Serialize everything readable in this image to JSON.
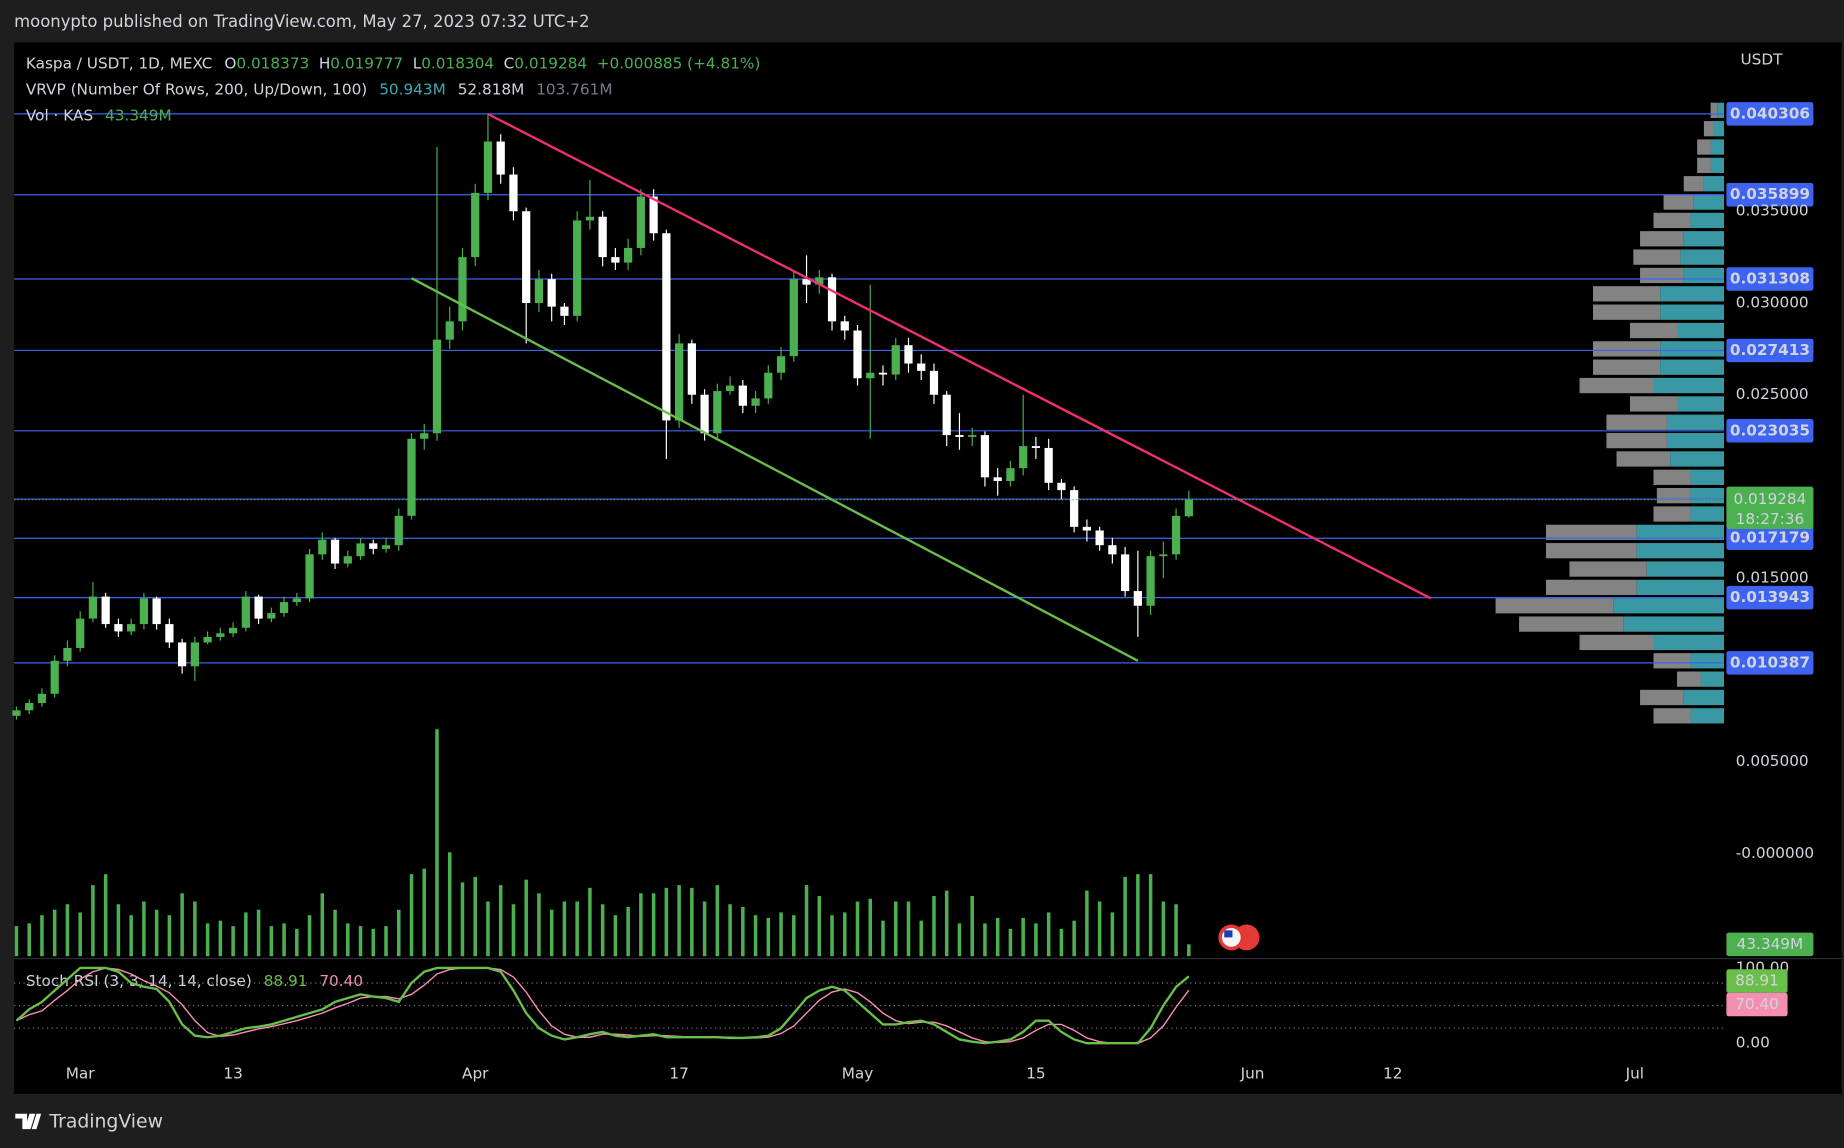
{
  "chart_data": {
    "type": "candlestick",
    "header": "moonypto published on TradingView.com, May 27, 2023 07:32 UTC+2",
    "symbol": "Kaspa / USDT, 1D, MEXC",
    "ohlc_keys": [
      "O",
      "H",
      "L",
      "C"
    ],
    "change_label": "+0.000885 (+4.81%)",
    "vrvp_title": "VRVP (Number Of Rows, 200, Up/Down, 100)",
    "vrvp_values": [
      "50.943M",
      "52.818M",
      "103.761M"
    ],
    "vol_title": "Vol · KAS",
    "currency": "USDT",
    "countdown": "18:27:36",
    "footer": "TradingView",
    "up_color": "#4caf50",
    "down_color": "#ffffff",
    "x": [
      "2023-02-24",
      "2023-02-25",
      "2023-02-26",
      "2023-02-27",
      "2023-02-28",
      "2023-03-01",
      "2023-03-02",
      "2023-03-03",
      "2023-03-04",
      "2023-03-05",
      "2023-03-06",
      "2023-03-07",
      "2023-03-08",
      "2023-03-09",
      "2023-03-10",
      "2023-03-11",
      "2023-03-12",
      "2023-03-13",
      "2023-03-14",
      "2023-03-15",
      "2023-03-16",
      "2023-03-17",
      "2023-03-18",
      "2023-03-19",
      "2023-03-20",
      "2023-03-21",
      "2023-03-22",
      "2023-03-23",
      "2023-03-24",
      "2023-03-25",
      "2023-03-26",
      "2023-03-27",
      "2023-03-28",
      "2023-03-29",
      "2023-03-30",
      "2023-03-31",
      "2023-04-01",
      "2023-04-02",
      "2023-04-03",
      "2023-04-04",
      "2023-04-05",
      "2023-04-06",
      "2023-04-07",
      "2023-04-08",
      "2023-04-09",
      "2023-04-10",
      "2023-04-11",
      "2023-04-12",
      "2023-04-13",
      "2023-04-14",
      "2023-04-15",
      "2023-04-16",
      "2023-04-17",
      "2023-04-18",
      "2023-04-19",
      "2023-04-20",
      "2023-04-21",
      "2023-04-22",
      "2023-04-23",
      "2023-04-24",
      "2023-04-25",
      "2023-04-26",
      "2023-04-27",
      "2023-04-28",
      "2023-04-29",
      "2023-04-30",
      "2023-05-01",
      "2023-05-02",
      "2023-05-03",
      "2023-05-04",
      "2023-05-05",
      "2023-05-06",
      "2023-05-07",
      "2023-05-08",
      "2023-05-09",
      "2023-05-10",
      "2023-05-11",
      "2023-05-12",
      "2023-05-13",
      "2023-05-14",
      "2023-05-15",
      "2023-05-16",
      "2023-05-17",
      "2023-05-18",
      "2023-05-19",
      "2023-05-20",
      "2023-05-21",
      "2023-05-22",
      "2023-05-23",
      "2023-05-24",
      "2023-05-25",
      "2023-05-26",
      "2023-05-27"
    ],
    "open": [
      0.0075,
      0.0078,
      0.0082,
      0.0087,
      0.0105,
      0.0112,
      0.0128,
      0.014,
      0.0125,
      0.0121,
      0.0125,
      0.0139,
      0.0125,
      0.0115,
      0.0102,
      0.0115,
      0.0118,
      0.012,
      0.0123,
      0.014,
      0.0128,
      0.0131,
      0.0137,
      0.0139,
      0.0163,
      0.0171,
      0.0158,
      0.0162,
      0.0169,
      0.0166,
      0.0168,
      0.0184,
      0.0226,
      0.0229,
      0.028,
      0.029,
      0.0325,
      0.036,
      0.0388,
      0.037,
      0.035,
      0.03,
      0.0313,
      0.0298,
      0.0293,
      0.0345,
      0.0347,
      0.0325,
      0.0322,
      0.033,
      0.0358,
      0.0338,
      0.0236,
      0.0278,
      0.025,
      0.0229,
      0.0252,
      0.0255,
      0.0244,
      0.0248,
      0.0262,
      0.0271,
      0.0313,
      0.031,
      0.0314,
      0.029,
      0.0285,
      0.0259,
      0.0262,
      0.0261,
      0.0277,
      0.0267,
      0.0263,
      0.025,
      0.0228,
      0.0227,
      0.0228,
      0.0205,
      0.0203,
      0.021,
      0.0222,
      0.0221,
      0.0202,
      0.0198,
      0.0178,
      0.0176,
      0.0168,
      0.0163,
      0.0143,
      0.0135,
      0.0162,
      0.0163,
      0.018373
    ],
    "high": [
      0.008,
      0.0084,
      0.009,
      0.0108,
      0.0116,
      0.0132,
      0.0148,
      0.0142,
      0.0128,
      0.0128,
      0.0142,
      0.014,
      0.0128,
      0.0117,
      0.0118,
      0.0121,
      0.0123,
      0.0126,
      0.0143,
      0.0141,
      0.0134,
      0.014,
      0.0142,
      0.0166,
      0.0175,
      0.0172,
      0.0165,
      0.0172,
      0.0171,
      0.0172,
      0.0188,
      0.0229,
      0.0234,
      0.0385,
      0.0298,
      0.033,
      0.0365,
      0.0403,
      0.0392,
      0.0374,
      0.0352,
      0.0318,
      0.0316,
      0.03,
      0.035,
      0.0367,
      0.035,
      0.033,
      0.0335,
      0.0362,
      0.0362,
      0.034,
      0.0283,
      0.028,
      0.0253,
      0.0256,
      0.026,
      0.0258,
      0.0252,
      0.0266,
      0.0276,
      0.0318,
      0.0326,
      0.0318,
      0.0316,
      0.0293,
      0.0288,
      0.031,
      0.0266,
      0.0281,
      0.0281,
      0.0272,
      0.0267,
      0.0252,
      0.024,
      0.0232,
      0.023,
      0.021,
      0.0214,
      0.025,
      0.0227,
      0.0226,
      0.0204,
      0.02,
      0.0182,
      0.0178,
      0.0172,
      0.0167,
      0.0165,
      0.0165,
      0.017,
      0.0188,
      0.019777
    ],
    "low": [
      0.0073,
      0.0076,
      0.008,
      0.0085,
      0.0102,
      0.011,
      0.0126,
      0.0123,
      0.0118,
      0.0119,
      0.0122,
      0.0122,
      0.0112,
      0.0098,
      0.0094,
      0.0114,
      0.0116,
      0.0118,
      0.0121,
      0.0125,
      0.0126,
      0.0129,
      0.0135,
      0.0137,
      0.016,
      0.0155,
      0.0156,
      0.016,
      0.0163,
      0.0164,
      0.0165,
      0.0182,
      0.022,
      0.0225,
      0.0275,
      0.0285,
      0.032,
      0.0356,
      0.0365,
      0.0345,
      0.0278,
      0.0295,
      0.029,
      0.0288,
      0.029,
      0.034,
      0.032,
      0.0318,
      0.0318,
      0.0326,
      0.0334,
      0.0215,
      0.0232,
      0.0245,
      0.0225,
      0.0226,
      0.025,
      0.024,
      0.024,
      0.0245,
      0.0258,
      0.0268,
      0.03,
      0.0305,
      0.0285,
      0.028,
      0.0255,
      0.0226,
      0.0255,
      0.0258,
      0.0262,
      0.0258,
      0.0245,
      0.0222,
      0.022,
      0.0222,
      0.02,
      0.0195,
      0.02,
      0.0206,
      0.0215,
      0.0198,
      0.0193,
      0.0175,
      0.017,
      0.0165,
      0.0158,
      0.014,
      0.0118,
      0.013,
      0.015,
      0.016,
      0.018304
    ],
    "close": [
      0.0078,
      0.0082,
      0.0087,
      0.0105,
      0.0112,
      0.0128,
      0.014,
      0.0125,
      0.0121,
      0.0125,
      0.0139,
      0.0125,
      0.0115,
      0.0102,
      0.0115,
      0.0118,
      0.012,
      0.0123,
      0.014,
      0.0128,
      0.0131,
      0.0137,
      0.0139,
      0.0163,
      0.0171,
      0.0158,
      0.0162,
      0.0169,
      0.0166,
      0.0168,
      0.0184,
      0.0226,
      0.0229,
      0.028,
      0.029,
      0.0325,
      0.036,
      0.0388,
      0.037,
      0.035,
      0.03,
      0.0313,
      0.0298,
      0.0293,
      0.0345,
      0.0347,
      0.0325,
      0.0322,
      0.033,
      0.0358,
      0.0338,
      0.0236,
      0.0278,
      0.025,
      0.0229,
      0.0252,
      0.0255,
      0.0244,
      0.0248,
      0.0262,
      0.0271,
      0.0313,
      0.031,
      0.0314,
      0.029,
      0.0285,
      0.0259,
      0.0262,
      0.0261,
      0.0277,
      0.0267,
      0.0263,
      0.025,
      0.0228,
      0.0227,
      0.0228,
      0.0205,
      0.0203,
      0.021,
      0.0222,
      0.0221,
      0.0202,
      0.0198,
      0.0178,
      0.0176,
      0.0168,
      0.0163,
      0.0143,
      0.0135,
      0.0162,
      0.0163,
      0.0184,
      0.019284
    ],
    "xlim": [
      "2023-02-24",
      "2023-07-08"
    ],
    "xticks": [
      {
        "value": "2023-03-01",
        "label": "Mar"
      },
      {
        "value": "2023-03-13",
        "label": "13"
      },
      {
        "value": "2023-04-01",
        "label": "Apr"
      },
      {
        "value": "2023-04-17",
        "label": "17"
      },
      {
        "value": "2023-05-01",
        "label": "May"
      },
      {
        "value": "2023-05-15",
        "label": "15"
      },
      {
        "value": "2023-06-01",
        "label": "Jun"
      },
      {
        "value": "2023-06-12",
        "label": "12"
      },
      {
        "value": "2023-07-01",
        "label": "Jul"
      }
    ],
    "ylim": [
      -0.0056,
      0.0442
    ],
    "yticks": [
      {
        "value": 0.035,
        "label": "0.035000"
      },
      {
        "value": 0.03,
        "label": "0.030000"
      },
      {
        "value": 0.025,
        "label": "0.025000"
      },
      {
        "value": 0.015,
        "label": "0.015000"
      },
      {
        "value": 0.005,
        "label": "0.005000"
      },
      {
        "value": 0,
        "label": "-0.000000"
      }
    ],
    "levels": [
      0.040306,
      0.035899,
      0.031308,
      0.027413,
      0.023035,
      0.019316,
      0.017179,
      0.013943,
      0.010387
    ],
    "level_color": "#3d63f0",
    "trendlines": [
      {
        "color": "#f0306e",
        "x": [
          "2023-04-02",
          "2023-06-15"
        ],
        "values": [
          0.0403,
          0.0139
        ]
      },
      {
        "color": "#6abf4b",
        "x": [
          "2023-03-27",
          "2023-05-23"
        ],
        "values": [
          0.03135,
          0.0105
        ]
      }
    ],
    "volume": {
      "color": "#4caf50",
      "ylim": [
        0,
        860
      ],
      "last_label": "43.349M",
      "values": [
        110,
        120,
        150,
        170,
        190,
        160,
        260,
        300,
        190,
        150,
        200,
        170,
        150,
        230,
        200,
        120,
        130,
        110,
        160,
        170,
        110,
        120,
        100,
        150,
        230,
        170,
        120,
        110,
        100,
        110,
        170,
        300,
        320,
        830,
        380,
        270,
        290,
        200,
        260,
        190,
        280,
        230,
        170,
        200,
        200,
        250,
        190,
        150,
        180,
        230,
        230,
        250,
        260,
        250,
        200,
        260,
        190,
        180,
        150,
        140,
        160,
        150,
        260,
        220,
        150,
        160,
        200,
        210,
        130,
        200,
        200,
        130,
        220,
        240,
        120,
        220,
        120,
        140,
        100,
        140,
        120,
        160,
        100,
        130,
        240,
        200,
        160,
        290,
        300,
        300,
        200,
        190,
        43.349
      ]
    },
    "volume_profile": {
      "up_color": "#3fa8b5",
      "down_color": "#9a9a9a",
      "xlim": [
        0,
        7
      ],
      "prices": [
        0.0075,
        0.0085,
        0.0095,
        0.0105,
        0.0115,
        0.0125,
        0.0135,
        0.0145,
        0.0155,
        0.0165,
        0.0175,
        0.0185,
        0.0195,
        0.0205,
        0.0215,
        0.0225,
        0.0235,
        0.0245,
        0.0255,
        0.0265,
        0.0275,
        0.0285,
        0.0295,
        0.0305,
        0.0315,
        0.0325,
        0.0335,
        0.0345,
        0.0355,
        0.0365,
        0.0375,
        0.0385,
        0.0395,
        0.0405
      ],
      "up": [
        1.0,
        1.2,
        0.7,
        1.0,
        2.1,
        3.0,
        3.3,
        2.6,
        2.3,
        2.6,
        2.6,
        1.0,
        1.0,
        1.0,
        1.6,
        1.7,
        1.7,
        1.4,
        2.1,
        1.9,
        1.9,
        1.4,
        1.9,
        1.9,
        1.2,
        1.3,
        1.2,
        1.0,
        0.9,
        0.6,
        0.4,
        0.4,
        0.3,
        0.2
      ],
      "down": [
        1.1,
        1.3,
        0.7,
        1.1,
        2.2,
        3.1,
        3.5,
        2.7,
        2.3,
        2.7,
        2.7,
        1.1,
        1.0,
        1.1,
        1.6,
        1.8,
        1.8,
        1.4,
        2.2,
        2.0,
        2.0,
        1.4,
        2.0,
        2.0,
        1.3,
        1.4,
        1.3,
        1.1,
        0.9,
        0.6,
        0.4,
        0.4,
        0.3,
        0.2
      ]
    },
    "stoch": {
      "title": "Stoch RSI (3, 3, 14, 14, close)",
      "ylim": [
        0,
        100
      ],
      "yticks": [
        {
          "value": 100,
          "label": "100.00"
        },
        {
          "value": 0,
          "label": "0.00"
        }
      ],
      "bands": [
        80,
        50,
        20
      ],
      "series": [
        {
          "color": "#6abf4b",
          "last_label": "88.91",
          "values": [
            30,
            45,
            55,
            70,
            85,
            100,
            100,
            100,
            95,
            80,
            75,
            72,
            55,
            25,
            10,
            8,
            10,
            15,
            20,
            22,
            25,
            30,
            35,
            40,
            45,
            55,
            60,
            65,
            62,
            60,
            55,
            80,
            95,
            100,
            100,
            100,
            100,
            100,
            95,
            70,
            40,
            20,
            10,
            5,
            8,
            12,
            15,
            10,
            8,
            10,
            12,
            8,
            8,
            8,
            8,
            8,
            7,
            7,
            8,
            10,
            20,
            40,
            60,
            70,
            75,
            70,
            55,
            40,
            25,
            25,
            28,
            30,
            25,
            15,
            5,
            2,
            0,
            2,
            5,
            15,
            30,
            30,
            15,
            5,
            0,
            0,
            0,
            0,
            0,
            20,
            50,
            75,
            88.91
          ]
        },
        {
          "color": "#f48fb1",
          "last_label": "70.40",
          "values": [
            30,
            38,
            43,
            57,
            70,
            85,
            95,
            100,
            98,
            92,
            83,
            76,
            67,
            51,
            30,
            14,
            9,
            11,
            15,
            19,
            22,
            26,
            30,
            35,
            40,
            47,
            53,
            60,
            62,
            62,
            59,
            65,
            77,
            92,
            98,
            100,
            100,
            100,
            98,
            88,
            68,
            43,
            23,
            12,
            8,
            8,
            12,
            12,
            11,
            9,
            10,
            10,
            9,
            8,
            8,
            8,
            8,
            7,
            7,
            8,
            13,
            23,
            40,
            57,
            68,
            72,
            67,
            55,
            40,
            30,
            26,
            28,
            28,
            23,
            15,
            7,
            2,
            1,
            2,
            7,
            17,
            25,
            25,
            17,
            7,
            2,
            0,
            0,
            0,
            7,
            23,
            48,
            70.4
          ]
        }
      ]
    }
  }
}
